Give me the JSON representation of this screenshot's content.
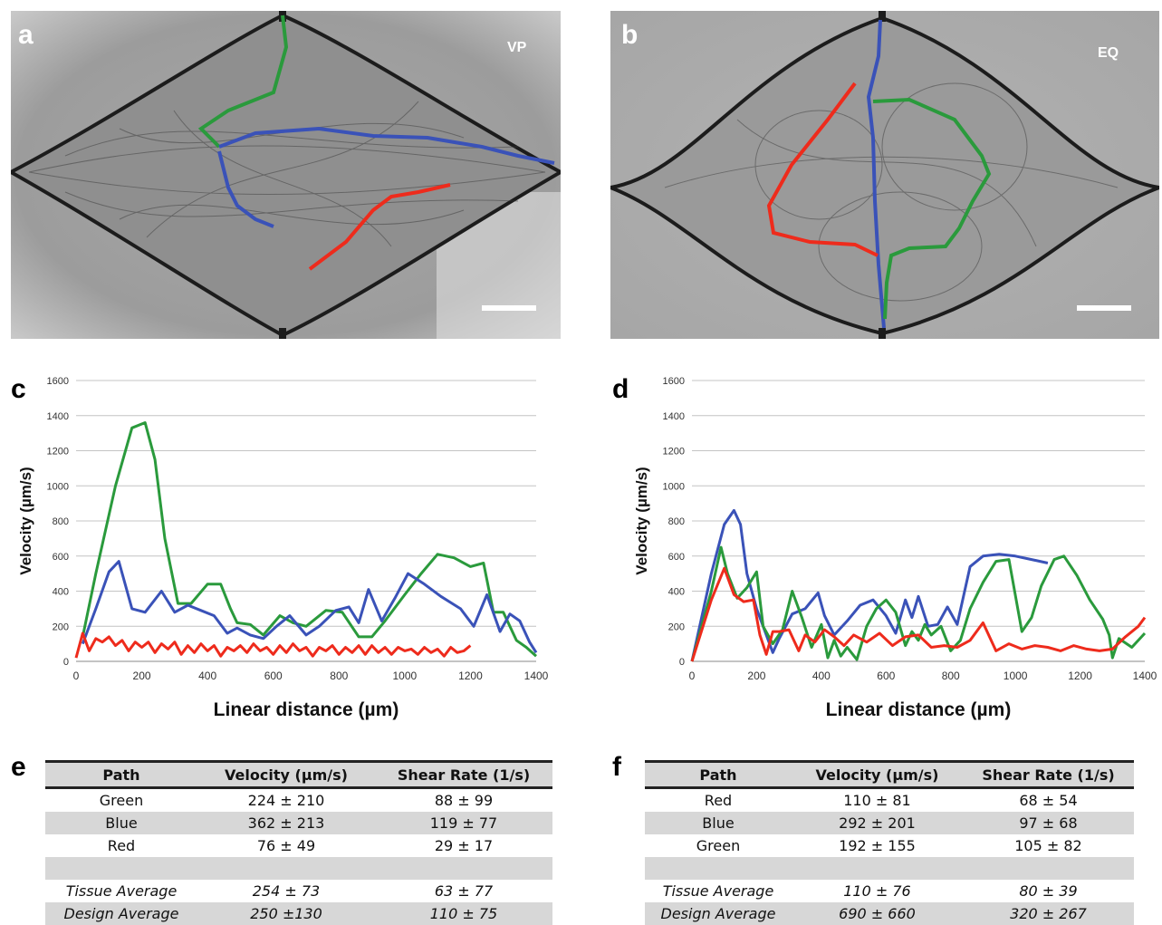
{
  "panels": {
    "a": {
      "label": "a",
      "tag": "VP"
    },
    "b": {
      "label": "b",
      "tag": "EQ"
    },
    "c": {
      "label": "c"
    },
    "d": {
      "label": "d"
    },
    "e": {
      "label": "e"
    },
    "f": {
      "label": "f"
    }
  },
  "colors": {
    "green": "#2a9a3c",
    "blue": "#3a52b8",
    "red": "#ee2b1c"
  },
  "chart_data": [
    {
      "panel": "c",
      "type": "line",
      "xlabel": "Linear distance (µm)",
      "ylabel": "Velocity (µm/s)",
      "xlim": [
        0,
        1400
      ],
      "ylim": [
        0,
        1600
      ],
      "xticks": [
        0,
        200,
        400,
        600,
        800,
        1000,
        1200,
        1400
      ],
      "yticks": [
        0,
        200,
        400,
        600,
        800,
        1000,
        1200,
        1400,
        1600
      ],
      "grid": true,
      "series": [
        {
          "color": "green",
          "x": [
            20,
            60,
            120,
            170,
            210,
            240,
            270,
            310,
            350,
            400,
            440,
            470,
            490,
            530,
            570,
            620,
            660,
            700,
            760,
            810,
            860,
            900,
            940,
            1000,
            1050,
            1100,
            1150,
            1200,
            1240,
            1270,
            1300,
            1340,
            1370,
            1400
          ],
          "y": [
            140,
            500,
            1000,
            1330,
            1360,
            1150,
            700,
            330,
            330,
            440,
            440,
            300,
            220,
            210,
            150,
            260,
            220,
            200,
            290,
            280,
            140,
            140,
            230,
            380,
            500,
            610,
            590,
            540,
            560,
            280,
            280,
            120,
            80,
            30
          ]
        },
        {
          "color": "blue",
          "x": [
            20,
            60,
            100,
            130,
            170,
            210,
            260,
            300,
            340,
            380,
            420,
            460,
            490,
            530,
            570,
            610,
            650,
            700,
            740,
            790,
            830,
            860,
            890,
            930,
            970,
            1010,
            1060,
            1110,
            1170,
            1210,
            1250,
            1290,
            1320,
            1350,
            1380,
            1400
          ],
          "y": [
            100,
            300,
            510,
            570,
            300,
            280,
            400,
            280,
            320,
            290,
            260,
            160,
            190,
            150,
            130,
            200,
            260,
            150,
            200,
            290,
            310,
            220,
            410,
            230,
            360,
            500,
            440,
            370,
            300,
            200,
            380,
            170,
            270,
            230,
            110,
            50
          ]
        },
        {
          "color": "red",
          "x": [
            0,
            20,
            40,
            60,
            80,
            100,
            120,
            140,
            160,
            180,
            200,
            220,
            240,
            260,
            280,
            300,
            320,
            340,
            360,
            380,
            400,
            420,
            440,
            460,
            480,
            500,
            520,
            540,
            560,
            580,
            600,
            620,
            640,
            660,
            680,
            700,
            720,
            740,
            760,
            780,
            800,
            820,
            840,
            860,
            880,
            900,
            920,
            940,
            960,
            980,
            1000,
            1020,
            1040,
            1060,
            1080,
            1100,
            1120,
            1140,
            1160,
            1180,
            1200
          ],
          "y": [
            20,
            160,
            60,
            130,
            110,
            140,
            90,
            120,
            60,
            110,
            80,
            110,
            50,
            100,
            70,
            110,
            40,
            90,
            50,
            100,
            60,
            90,
            30,
            80,
            60,
            90,
            50,
            100,
            60,
            80,
            40,
            90,
            50,
            100,
            60,
            80,
            30,
            80,
            60,
            90,
            40,
            80,
            50,
            90,
            40,
            90,
            50,
            80,
            40,
            80,
            60,
            70,
            40,
            80,
            50,
            70,
            30,
            80,
            50,
            60,
            90
          ]
        }
      ]
    },
    {
      "panel": "d",
      "type": "line",
      "xlabel": "Linear distance (µm)",
      "ylabel": "Velocity (µm/s)",
      "xlim": [
        0,
        1400
      ],
      "ylim": [
        0,
        1600
      ],
      "xticks": [
        0,
        200,
        400,
        600,
        800,
        1000,
        1200,
        1400
      ],
      "yticks": [
        0,
        200,
        400,
        600,
        800,
        1000,
        1200,
        1400,
        1600
      ],
      "grid": true,
      "series": [
        {
          "color": "blue",
          "x": [
            0,
            60,
            100,
            130,
            150,
            170,
            200,
            230,
            250,
            270,
            310,
            350,
            390,
            410,
            440,
            480,
            520,
            560,
            600,
            630,
            660,
            680,
            700,
            730,
            760,
            790,
            820,
            860,
            900,
            950,
            1000,
            1050,
            1100
          ],
          "y": [
            0,
            500,
            780,
            860,
            780,
            500,
            300,
            150,
            50,
            130,
            270,
            300,
            390,
            260,
            150,
            230,
            320,
            350,
            260,
            160,
            350,
            250,
            370,
            200,
            210,
            310,
            210,
            540,
            600,
            610,
            600,
            580,
            560
          ]
        },
        {
          "color": "green",
          "x": [
            0,
            60,
            90,
            110,
            140,
            170,
            200,
            220,
            250,
            280,
            310,
            340,
            370,
            400,
            420,
            440,
            460,
            480,
            510,
            540,
            570,
            600,
            630,
            660,
            680,
            700,
            720,
            740,
            770,
            800,
            830,
            860,
            900,
            940,
            980,
            1020,
            1050,
            1080,
            1120,
            1150,
            1190,
            1230,
            1270,
            1290,
            1300,
            1320,
            1360,
            1400
          ],
          "y": [
            0,
            400,
            650,
            500,
            360,
            420,
            510,
            200,
            100,
            180,
            400,
            250,
            80,
            210,
            20,
            120,
            30,
            80,
            10,
            200,
            300,
            350,
            280,
            90,
            170,
            120,
            210,
            150,
            200,
            60,
            120,
            300,
            450,
            570,
            580,
            170,
            250,
            430,
            580,
            600,
            490,
            350,
            240,
            150,
            20,
            130,
            80,
            160
          ]
        },
        {
          "color": "red",
          "x": [
            0,
            60,
            100,
            130,
            160,
            190,
            210,
            230,
            250,
            270,
            300,
            330,
            350,
            380,
            410,
            440,
            470,
            500,
            540,
            580,
            620,
            660,
            700,
            740,
            780,
            820,
            860,
            900,
            940,
            980,
            1020,
            1060,
            1100,
            1140,
            1180,
            1220,
            1260,
            1300,
            1340,
            1380,
            1400
          ],
          "y": [
            0,
            350,
            530,
            380,
            340,
            350,
            150,
            40,
            170,
            170,
            180,
            60,
            150,
            110,
            180,
            140,
            90,
            150,
            110,
            160,
            90,
            140,
            150,
            80,
            90,
            80,
            120,
            220,
            60,
            100,
            70,
            90,
            80,
            60,
            90,
            70,
            60,
            70,
            140,
            200,
            250
          ]
        }
      ]
    }
  ],
  "table_e": {
    "headers": [
      "Path",
      "Velocity (µm/s)",
      "Shear Rate (1/s)"
    ],
    "rows": [
      [
        "Green",
        "224  ± 210",
        "88 ± 99"
      ],
      [
        "Blue",
        "362 ± 213",
        "119 ± 77"
      ],
      [
        "Red",
        "76 ± 49",
        "29 ± 17"
      ],
      [
        "",
        "",
        ""
      ],
      [
        "Tissue Average",
        "254 ± 73",
        "63 ± 77"
      ],
      [
        "Design Average",
        "250 ±130",
        "110 ± 75"
      ]
    ]
  },
  "table_f": {
    "headers": [
      "Path",
      "Velocity (µm/s)",
      "Shear Rate (1/s)"
    ],
    "rows": [
      [
        "Red",
        "110 ± 81",
        "68 ± 54"
      ],
      [
        "Blue",
        "292 ± 201",
        "97 ± 68"
      ],
      [
        "Green",
        "192 ± 155",
        "105 ± 82"
      ],
      [
        "",
        "",
        ""
      ],
      [
        "Tissue Average",
        "110 ± 76",
        "80 ± 39"
      ],
      [
        "Design Average",
        "690 ± 660",
        "320 ± 267"
      ]
    ]
  }
}
